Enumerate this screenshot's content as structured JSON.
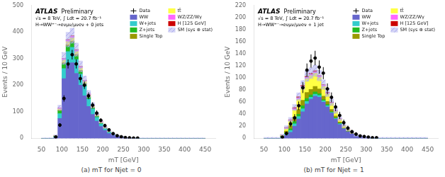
{
  "chart_data": [
    {
      "type": "bar",
      "stacked": true,
      "grid": false,
      "legend": "upper right",
      "xlabel": "mT [GeV]",
      "ylabel": "Events / 10 GeV",
      "annotations": [
        "ATLAS",
        "Preliminary",
        "√s = 8 TeV, ∫ Ldt = 20.7 fb⁻¹",
        "H→WW⁺⁻→eνμν/μνeν + 0 jets"
      ],
      "caption": "(a) mT for Njet = 0",
      "xlim": [
        50,
        450
      ],
      "xticks": [
        50,
        100,
        150,
        200,
        250,
        300,
        350,
        400,
        450
      ],
      "ylim": [
        0,
        500
      ],
      "yticks": [
        0,
        100,
        200,
        300,
        400,
        500
      ],
      "bins": [
        50,
        60,
        70,
        80,
        90,
        100,
        110,
        120,
        130,
        140,
        150,
        160,
        170,
        180,
        190,
        200,
        210,
        220,
        230,
        240,
        250,
        260,
        270,
        280,
        290,
        300,
        310,
        320,
        330,
        340,
        350,
        360,
        370,
        380,
        390,
        400,
        410,
        420,
        430,
        440,
        450
      ],
      "series": [
        {
          "name": "Data",
          "type": "scatter",
          "color": "#000000",
          "values": [
            null,
            null,
            null,
            5,
            50,
            150,
            280,
            315,
            280,
            225,
            200,
            160,
            125,
            95,
            68,
            48,
            32,
            18,
            10,
            6,
            3,
            2,
            1,
            1,
            null,
            null,
            null,
            null,
            null,
            null,
            null,
            null,
            null,
            null,
            null,
            null,
            null,
            null,
            null,
            null
          ],
          "errors": [
            null,
            null,
            null,
            2,
            7,
            12,
            17,
            18,
            17,
            15,
            14,
            13,
            11,
            10,
            8,
            7,
            6,
            4,
            3,
            2,
            2,
            1,
            1,
            1,
            null,
            null,
            null,
            null,
            null,
            null,
            null,
            null,
            null,
            null,
            null,
            null,
            null,
            null,
            null,
            null
          ]
        },
        {
          "name": "WW",
          "type": "bar",
          "color": "#6666cc",
          "values": [
            0,
            0,
            0,
            4,
            75,
            225,
            275,
            285,
            245,
            200,
            160,
            120,
            90,
            65,
            45,
            30,
            18,
            12,
            8,
            5,
            2,
            1,
            1,
            0,
            0,
            0,
            0,
            0,
            0,
            0,
            0,
            0,
            0,
            0,
            0,
            0,
            0,
            0,
            0,
            0
          ]
        },
        {
          "name": "W+jets",
          "type": "bar",
          "color": "#33cccc",
          "values": [
            0,
            0,
            0,
            2,
            18,
            38,
            52,
            58,
            52,
            42,
            36,
            28,
            20,
            14,
            9,
            6,
            4,
            2,
            1,
            1,
            0,
            0,
            0,
            0,
            0,
            0,
            0,
            0,
            0,
            0,
            0,
            0,
            0,
            0,
            0,
            0,
            0,
            0,
            0,
            0
          ]
        },
        {
          "name": "Z+jets",
          "type": "bar",
          "color": "#22bb22",
          "values": [
            0,
            0,
            0,
            2,
            10,
            18,
            20,
            18,
            14,
            10,
            8,
            6,
            4,
            3,
            2,
            1,
            1,
            0,
            0,
            0,
            0,
            0,
            0,
            0,
            0,
            0,
            0,
            0,
            0,
            0,
            0,
            0,
            0,
            0,
            0,
            0,
            0,
            0,
            0,
            0
          ]
        },
        {
          "name": "Single Top",
          "type": "bar",
          "color": "#999900",
          "values": [
            0,
            0,
            0,
            1,
            3,
            4,
            5,
            5,
            5,
            4,
            3,
            3,
            2,
            2,
            1,
            1,
            1,
            0,
            0,
            0,
            0,
            0,
            0,
            0,
            0,
            0,
            0,
            0,
            0,
            0,
            0,
            0,
            0,
            0,
            0,
            0,
            0,
            0,
            0,
            0
          ]
        },
        {
          "name": "tt̄",
          "type": "bar",
          "color": "#ffff44",
          "values": [
            0,
            0,
            0,
            1,
            5,
            10,
            12,
            12,
            11,
            9,
            7,
            6,
            5,
            4,
            3,
            2,
            2,
            1,
            1,
            0,
            0,
            0,
            0,
            0,
            0,
            0,
            0,
            0,
            0,
            0,
            0,
            0,
            0,
            0,
            0,
            0,
            0,
            0,
            0,
            0
          ]
        },
        {
          "name": "WZ/ZZ/Wγ",
          "type": "bar",
          "color": "#ff66ff",
          "values": [
            0,
            0,
            0,
            1,
            3,
            5,
            6,
            6,
            5,
            4,
            3,
            3,
            2,
            2,
            2,
            1,
            1,
            1,
            0,
            0,
            0,
            0,
            0,
            0,
            0,
            0,
            0,
            0,
            0,
            0,
            0,
            0,
            0,
            0,
            0,
            0,
            0,
            0,
            0,
            0
          ]
        },
        {
          "name": "H [125 GeV]",
          "type": "bar",
          "color": "#cc0000",
          "values": [
            0,
            0,
            0,
            0,
            1,
            1,
            2,
            2,
            2,
            2,
            1,
            1,
            1,
            1,
            1,
            0,
            0,
            0,
            0,
            0,
            0,
            0,
            0,
            0,
            0,
            0,
            0,
            0,
            0,
            0,
            0,
            0,
            0,
            0,
            0,
            0,
            0,
            0,
            0,
            0
          ]
        },
        {
          "name": "SM (sys ⊕ stat)",
          "type": "band",
          "color": "#aaaaee",
          "lower": [
            -1.5,
            -1.5,
            -1.5,
            8.73,
            105.45,
            278.43,
            344.46,
            357.48,
            309.12,
            250.53,
            201.24,
            153.81,
            113.82,
            83.13,
            57.09,
            36.63,
            23.61,
            13.38,
            7.8,
            4.08,
            0.36,
            -0.57,
            -0.57,
            -1.5,
            -1.5,
            -1.5,
            -1.5,
            -1.5,
            -1.5,
            -1.5,
            -1.5,
            -1.5,
            -1.5,
            -1.5,
            -1.5,
            -1.5,
            -1.5,
            -1.5,
            -1.5,
            -1.5
          ],
          "upper": [
            1.5,
            1.5,
            1.5,
            13.27,
            124.55,
            323.57,
            399.54,
            414.52,
            358.88,
            291.47,
            234.76,
            180.19,
            134.18,
            98.87,
            68.91,
            45.37,
            30.39,
            18.62,
            12.2,
            7.92,
            3.64,
            2.57,
            2.57,
            1.5,
            1.5,
            1.5,
            1.5,
            1.5,
            1.5,
            1.5,
            1.5,
            1.5,
            1.5,
            1.5,
            1.5,
            1.5,
            1.5,
            1.5,
            1.5,
            1.5
          ]
        }
      ]
    },
    {
      "type": "bar",
      "stacked": true,
      "grid": false,
      "legend": "upper right",
      "xlabel": "mT [GeV]",
      "ylabel": "Events / 10 GeV",
      "annotations": [
        "ATLAS",
        "Preliminary",
        "√s = 8 TeV, ∫ Ldt = 20.7 fb⁻¹",
        "H→WW⁺⁻→eνμν/μνeν + 1 jet"
      ],
      "caption": "(b) mT for Njet = 1",
      "xlim": [
        50,
        450
      ],
      "xticks": [
        50,
        100,
        150,
        200,
        250,
        300,
        350,
        400,
        450
      ],
      "ylim": [
        0,
        220
      ],
      "yticks": [
        0,
        20,
        40,
        60,
        80,
        100,
        120,
        140,
        160,
        180,
        200,
        220
      ],
      "bins": [
        50,
        60,
        70,
        80,
        90,
        100,
        110,
        120,
        130,
        140,
        150,
        160,
        170,
        180,
        190,
        200,
        210,
        220,
        230,
        240,
        250,
        260,
        270,
        280,
        290,
        300,
        310,
        320,
        330,
        340,
        350,
        360,
        370,
        380,
        390,
        400,
        410,
        420,
        430,
        440,
        450
      ],
      "series": [
        {
          "name": "Data",
          "type": "scatter",
          "color": "#000000",
          "values": [
            null,
            null,
            null,
            null,
            2,
            8,
            24,
            34,
            54,
            84,
            113,
            128,
            133,
            118,
            108,
            82,
            68,
            52,
            38,
            26,
            17,
            11,
            7,
            4,
            3,
            2,
            1,
            1,
            null,
            null,
            null,
            null,
            null,
            null,
            null,
            null,
            null,
            null,
            null,
            null
          ],
          "errors": [
            null,
            null,
            null,
            null,
            1,
            3,
            5,
            6,
            7,
            9,
            11,
            11,
            12,
            11,
            10,
            9,
            8,
            7,
            6,
            5,
            4,
            3,
            3,
            2,
            2,
            1,
            1,
            1,
            null,
            null,
            null,
            null,
            null,
            null,
            null,
            null,
            null,
            null,
            null,
            null
          ]
        },
        {
          "name": "WW",
          "type": "bar",
          "color": "#6666cc",
          "values": [
            0,
            0,
            0,
            0,
            1,
            5,
            10,
            20,
            32,
            44,
            57,
            65,
            70,
            68,
            60,
            52,
            42,
            32,
            23,
            16,
            11,
            7,
            4,
            3,
            2,
            1,
            0,
            0,
            0,
            0,
            0,
            0,
            0,
            0,
            0,
            0,
            0,
            0,
            0,
            0
          ]
        },
        {
          "name": "W+jets",
          "type": "bar",
          "color": "#33cccc",
          "values": [
            0,
            0,
            0,
            0,
            1,
            2,
            3,
            4,
            4,
            5,
            4,
            3,
            3,
            3,
            2,
            2,
            1,
            1,
            1,
            0,
            0,
            0,
            0,
            0,
            0,
            0,
            0,
            0,
            0,
            0,
            0,
            0,
            0,
            0,
            0,
            0,
            0,
            0,
            0,
            0
          ]
        },
        {
          "name": "Z+jets",
          "type": "bar",
          "color": "#22bb22",
          "values": [
            0,
            0,
            0,
            0,
            1,
            2,
            3,
            4,
            4,
            5,
            5,
            4,
            4,
            3,
            2,
            2,
            1,
            1,
            1,
            0,
            0,
            0,
            0,
            0,
            0,
            0,
            0,
            0,
            0,
            0,
            0,
            0,
            0,
            0,
            0,
            0,
            0,
            0,
            0,
            0
          ]
        },
        {
          "name": "Single Top",
          "type": "bar",
          "color": "#999900",
          "values": [
            0,
            0,
            0,
            0,
            1,
            3,
            5,
            7,
            8,
            9,
            10,
            9,
            9,
            8,
            6,
            5,
            4,
            3,
            2,
            1,
            1,
            1,
            0,
            0,
            0,
            0,
            0,
            0,
            0,
            0,
            0,
            0,
            0,
            0,
            0,
            0,
            0,
            0,
            0,
            0
          ]
        },
        {
          "name": "tt̄",
          "type": "bar",
          "color": "#ffff44",
          "values": [
            0,
            0,
            0,
            0,
            1,
            4,
            8,
            12,
            17,
            21,
            23,
            23,
            22,
            19,
            16,
            13,
            10,
            8,
            5,
            4,
            3,
            2,
            1,
            1,
            0,
            0,
            0,
            0,
            0,
            0,
            0,
            0,
            0,
            0,
            0,
            0,
            0,
            0,
            0,
            0
          ]
        },
        {
          "name": "WZ/ZZ/Wγ",
          "type": "bar",
          "color": "#ff66ff",
          "values": [
            0,
            0,
            0,
            0,
            0,
            1,
            1,
            2,
            2,
            2,
            2,
            2,
            2,
            2,
            2,
            1,
            1,
            1,
            1,
            0,
            0,
            0,
            0,
            0,
            0,
            0,
            0,
            0,
            0,
            0,
            0,
            0,
            0,
            0,
            0,
            0,
            0,
            0,
            0,
            0
          ]
        },
        {
          "name": "H [125 GeV]",
          "type": "bar",
          "color": "#cc0000",
          "values": [
            0,
            0,
            0,
            0,
            0,
            1,
            1,
            2,
            2,
            2,
            2,
            2,
            2,
            1,
            1,
            1,
            1,
            0,
            0,
            0,
            0,
            0,
            0,
            0,
            0,
            0,
            0,
            0,
            0,
            0,
            0,
            0,
            0,
            0,
            0,
            0,
            0,
            0,
            0,
            0
          ]
        },
        {
          "name": "SM (sys ⊕ stat)",
          "type": "band",
          "color": "#aaaaee",
          "lower": [
            -1.5,
            -1.5,
            -1.5,
            -1.5,
            3.15,
            15.24,
            27.33,
            45.93,
            62.67,
            80.34,
            94.29,
            98.94,
            102.66,
            95.22,
            81.27,
            69.18,
            54.3,
            41.28,
            29.19,
            18.03,
            12.45,
            7.8,
            3.15,
            2.22,
            0.36,
            -0.57,
            -1.5,
            -1.5,
            -1.5,
            -1.5,
            -1.5,
            -1.5,
            -1.5,
            -1.5,
            -1.5,
            -1.5,
            -1.5,
            -1.5,
            -1.5,
            -1.5
          ],
          "upper": [
            1.5,
            1.5,
            1.5,
            1.5,
            6.85,
            20.76,
            34.67,
            56.07,
            75.33,
            95.66,
            111.71,
            117.06,
            121.34,
            112.78,
            96.73,
            82.82,
            65.7,
            50.72,
            36.81,
            23.97,
            17.55,
            12.2,
            6.85,
            5.78,
            3.64,
            2.57,
            1.5,
            1.5,
            1.5,
            1.5,
            1.5,
            1.5,
            1.5,
            1.5,
            1.5,
            1.5,
            1.5,
            1.5,
            1.5,
            1.5
          ]
        }
      ]
    }
  ]
}
